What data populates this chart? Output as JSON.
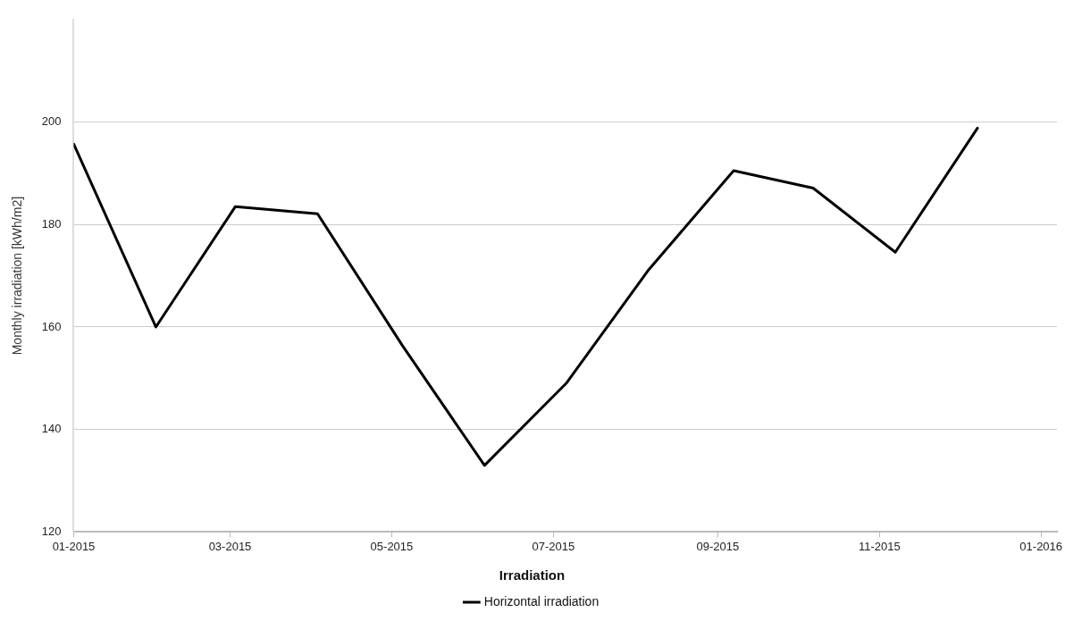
{
  "chart_data": {
    "type": "line",
    "ylabel": "Monthly irradiation [kWh/m2]",
    "legend_title": "Irradiation",
    "x": [
      "2015-01-01",
      "2015-02-01",
      "2015-03-03",
      "2015-04-03",
      "2015-05-05",
      "2015-06-05",
      "2015-07-06",
      "2015-08-06",
      "2015-09-07",
      "2015-10-07",
      "2015-11-07",
      "2015-12-08"
    ],
    "series": [
      {
        "name": "Horizontal irradiation",
        "color": "#000000",
        "values": [
          195.7,
          160.0,
          183.5,
          182.1,
          156.4,
          133.0,
          149.1,
          171.2,
          190.5,
          187.1,
          174.6,
          198.8
        ]
      }
    ],
    "xlim": [
      "2015-01-01",
      "2016-01-07"
    ],
    "xticks": [
      {
        "value": "2015-01",
        "label": "01-2015"
      },
      {
        "value": "2015-03",
        "label": "03-2015"
      },
      {
        "value": "2015-05",
        "label": "05-2015"
      },
      {
        "value": "2015-07",
        "label": "07-2015"
      },
      {
        "value": "2015-09",
        "label": "09-2015"
      },
      {
        "value": "2015-11",
        "label": "11-2015"
      },
      {
        "value": "2016-01",
        "label": "01-2016"
      }
    ],
    "ylim": [
      120,
      220
    ],
    "yticks": [
      120,
      140,
      160,
      180,
      200
    ],
    "grid": "y",
    "legend": "bottom",
    "marker": "none",
    "line_style": "solid"
  }
}
